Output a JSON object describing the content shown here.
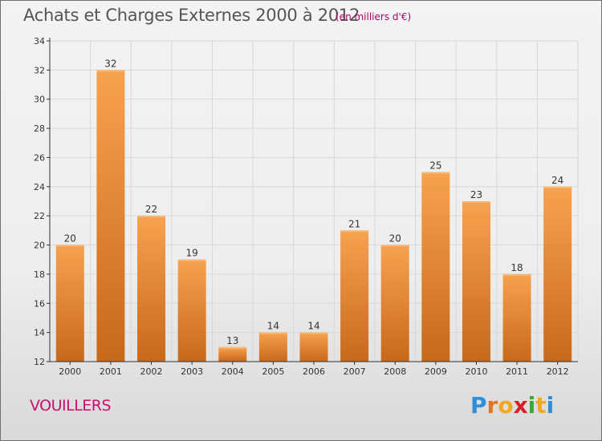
{
  "header": {
    "title": "Achats et Charges Externes 2000 à 2012",
    "subtitle": "(en milliers d'€)"
  },
  "footer": {
    "commune": "VOUILLERS",
    "logo": [
      "P",
      "r",
      "o",
      "x",
      "i",
      "t",
      "i"
    ],
    "logo_colors": [
      "#2e8fd8",
      "#e8731c",
      "#f2a81e",
      "#d8202a",
      "#39a935",
      "#f2a81e",
      "#2e8fd8"
    ]
  },
  "colors": {
    "bar_top": "#f7a24e",
    "bar_bottom": "#c8681a",
    "axis": "#333333",
    "grid": "#d8d8d8"
  },
  "chart_data": {
    "type": "bar",
    "categories": [
      "2000",
      "2001",
      "2002",
      "2003",
      "2004",
      "2005",
      "2006",
      "2007",
      "2008",
      "2009",
      "2010",
      "2011",
      "2012"
    ],
    "values": [
      20,
      32,
      22,
      19,
      13,
      14,
      14,
      21,
      20,
      25,
      23,
      18,
      24
    ],
    "yticks": [
      12,
      14,
      16,
      18,
      20,
      22,
      24,
      26,
      28,
      30,
      32,
      34
    ],
    "ylim": [
      12,
      34
    ],
    "title": "Achats et Charges Externes 2000 à 2012",
    "xlabel": "",
    "ylabel": "",
    "grid": true,
    "data_labels": true
  }
}
